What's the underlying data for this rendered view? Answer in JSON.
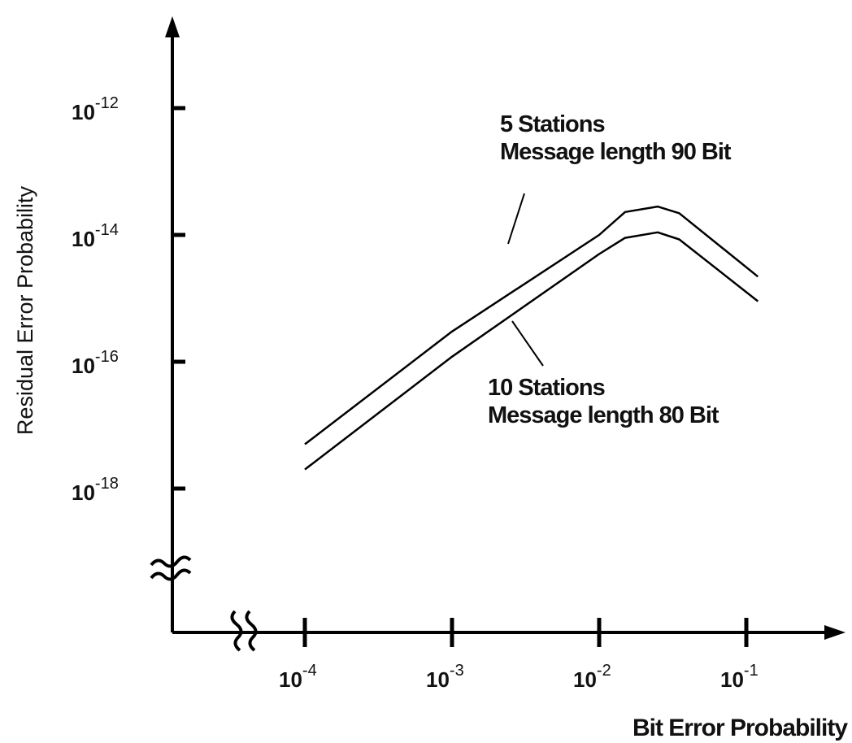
{
  "chart_data": {
    "type": "line",
    "title": "",
    "xlabel": "Bit Error Probability",
    "ylabel": "Residual Error Probability",
    "x_scale": "log",
    "y_scale": "log",
    "xlim": [
      1e-05,
      0.3
    ],
    "ylim": [
      1e-20,
      1e-11
    ],
    "x_ticks": [
      {
        "value": 0.0001,
        "base": "10",
        "exp": "-4"
      },
      {
        "value": 0.001,
        "base": "10",
        "exp": "-3"
      },
      {
        "value": 0.01,
        "base": "10",
        "exp": "-2"
      },
      {
        "value": 0.1,
        "base": "10",
        "exp": "-1"
      }
    ],
    "y_ticks": [
      {
        "value": 1e-12,
        "base": "10",
        "exp": "-12"
      },
      {
        "value": 1e-14,
        "base": "10",
        "exp": "-14"
      },
      {
        "value": 1e-16,
        "base": "10",
        "exp": "-16"
      },
      {
        "value": 1e-18,
        "base": "10",
        "exp": "-18"
      }
    ],
    "axis_breaks": [
      "x",
      "y"
    ],
    "grid": false,
    "series": [
      {
        "label_lines": [
          "5 Stations",
          "Message length 90 Bit"
        ],
        "points": [
          [
            0.0001,
            5e-18
          ],
          [
            0.001,
            3e-16
          ],
          [
            0.01,
            1e-14
          ],
          [
            0.015,
            2.3e-14
          ],
          [
            0.025,
            2.8e-14
          ],
          [
            0.035,
            2.2e-14
          ],
          [
            0.12,
            2.2e-15
          ]
        ]
      },
      {
        "label_lines": [
          "10 Stations",
          "Message length 80 Bit"
        ],
        "points": [
          [
            0.0001,
            2e-18
          ],
          [
            0.001,
            1.2e-16
          ],
          [
            0.01,
            5e-15
          ],
          [
            0.015,
            9e-15
          ],
          [
            0.025,
            1.1e-14
          ],
          [
            0.035,
            8.5e-15
          ],
          [
            0.12,
            9e-16
          ]
        ]
      }
    ]
  }
}
